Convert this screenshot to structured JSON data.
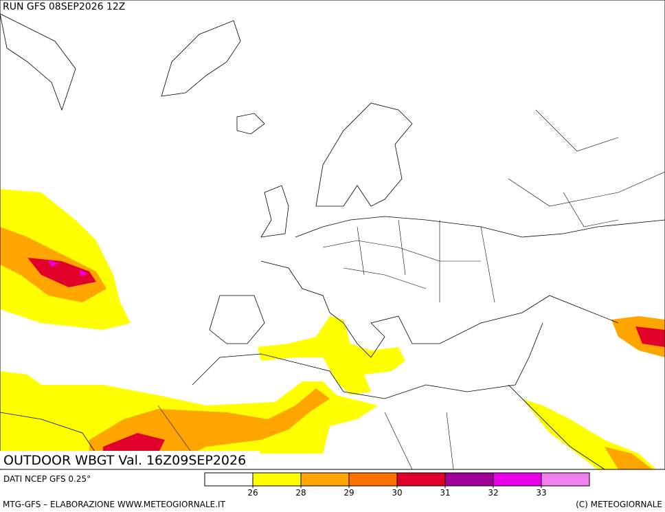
{
  "header": {
    "run": "RUN GFS 08SEP2026 12Z"
  },
  "map": {
    "title": "OUTDOOR WBGT Val. 16Z09SEP2026"
  },
  "source": "DATI NCEP GFS 0.25°",
  "legend": {
    "colors": [
      "#ffffff",
      "#ffff00",
      "#ffa500",
      "#ff7000",
      "#e0002a",
      "#a0009a",
      "#e800e8",
      "#f080f0"
    ],
    "ticks": [
      26,
      28,
      29,
      30,
      31,
      32,
      33
    ]
  },
  "footer": {
    "left": "MTG-GFS – ELABORAZIONE WWW.METEOGIORNALE.IT",
    "right": "(C) METEOGIORNALE"
  }
}
